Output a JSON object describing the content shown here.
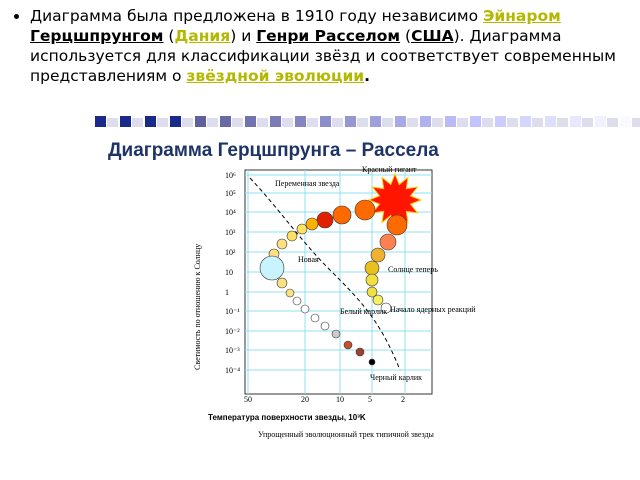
{
  "bullet": {
    "segments": [
      "Диаграмма была предложена в 1910 году независимо ",
      "Эйнаром ",
      "Герцшпрунгом",
      " (",
      "Дания",
      ") и ",
      "Генри Расселом",
      " (",
      "США",
      "). Диаграмма используется для классификации звёзд и соответствует современным представлениям о ",
      "звёздной эволюции",
      "."
    ]
  },
  "figure": {
    "title": "Диаграмма Герцшпрунга – Рассела",
    "y_label": "Светимость по отношению к Солнцу",
    "y_ticks": [
      "10⁶",
      "10⁵",
      "10⁴",
      "10³",
      "10²",
      "10",
      "1",
      "10⁻¹",
      "10⁻²",
      "10⁻³",
      "10⁻⁴"
    ],
    "x_ticks": [
      "50",
      "20",
      "10",
      "5",
      "2"
    ],
    "x_label": "Температура поверхности звезды, 10³K",
    "annotations": [
      "Красный гигант",
      "Переменная звезда",
      "Новая",
      "Солнце теперь",
      "Начало ядерных реакций",
      "Белый карлик",
      "Черный карлик"
    ],
    "caption": "Упрощенный эволюционный трек типичной звезды"
  }
}
